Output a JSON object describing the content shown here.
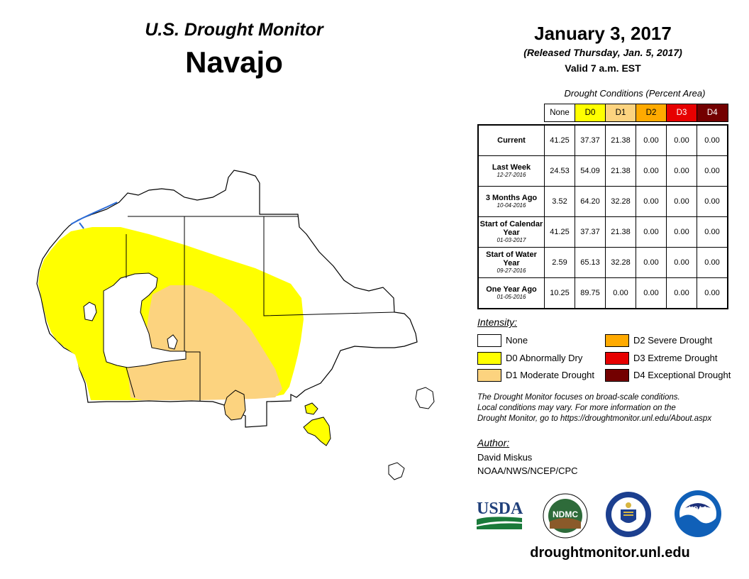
{
  "header": {
    "title": "U.S. Drought Monitor",
    "region": "Navajo"
  },
  "date_block": {
    "date": "January 3, 2017",
    "released": "(Released Thursday, Jan. 5, 2017)",
    "valid": "Valid 7 a.m. EST"
  },
  "table": {
    "caption": "Drought Conditions (Percent Area)",
    "columns": [
      {
        "label": "None",
        "color": "#ffffff",
        "text_color": "#000000"
      },
      {
        "label": "D0",
        "color": "#ffff00",
        "text_color": "#000000"
      },
      {
        "label": "D1",
        "color": "#fcd37f",
        "text_color": "#000000"
      },
      {
        "label": "D2",
        "color": "#ffaa00",
        "text_color": "#000000"
      },
      {
        "label": "D3",
        "color": "#e60000",
        "text_color": "#ffffff"
      },
      {
        "label": "D4",
        "color": "#730000",
        "text_color": "#ffffff"
      }
    ],
    "rows": [
      {
        "label": "Current",
        "date": "",
        "values": [
          "41.25",
          "37.37",
          "21.38",
          "0.00",
          "0.00",
          "0.00"
        ]
      },
      {
        "label": "Last Week",
        "date": "12-27-2016",
        "values": [
          "24.53",
          "54.09",
          "21.38",
          "0.00",
          "0.00",
          "0.00"
        ]
      },
      {
        "label": "3 Months Ago",
        "date": "10-04-2016",
        "values": [
          "3.52",
          "64.20",
          "32.28",
          "0.00",
          "0.00",
          "0.00"
        ]
      },
      {
        "label": "Start of Calendar Year",
        "date": "01-03-2017",
        "values": [
          "41.25",
          "37.37",
          "21.38",
          "0.00",
          "0.00",
          "0.00"
        ]
      },
      {
        "label": "Start of Water Year",
        "date": "09-27-2016",
        "values": [
          "2.59",
          "65.13",
          "32.28",
          "0.00",
          "0.00",
          "0.00"
        ]
      },
      {
        "label": "One Year Ago",
        "date": "01-05-2016",
        "values": [
          "10.25",
          "89.75",
          "0.00",
          "0.00",
          "0.00",
          "0.00"
        ]
      }
    ]
  },
  "legend": {
    "heading": "Intensity:",
    "items": [
      {
        "label": "None",
        "color": "#ffffff"
      },
      {
        "label": "D0 Abnormally Dry",
        "color": "#ffff00"
      },
      {
        "label": "D1 Moderate Drought",
        "color": "#fcd37f"
      },
      {
        "label": "D2 Severe Drought",
        "color": "#ffaa00"
      },
      {
        "label": "D3 Extreme Drought",
        "color": "#e60000"
      },
      {
        "label": "D4 Exceptional Drought",
        "color": "#730000"
      }
    ]
  },
  "footnote": {
    "line1": "The Drought Monitor focuses on broad-scale conditions.",
    "line2": "Local conditions may vary. For more information on the",
    "line3": "Drought Monitor, go to https://droughtmonitor.unl.edu/About.aspx"
  },
  "author": {
    "heading": "Author:",
    "name": "David Miskus",
    "org": "NOAA/NWS/NCEP/CPC"
  },
  "logos": {
    "usda": "USDA",
    "ndmc": "NDMC",
    "noaa": "NOAA"
  },
  "website": "droughtmonitor.unl.edu",
  "map_colors": {
    "d0": "#ffff00",
    "d1": "#fcd37f",
    "water": "#2a6bd8"
  }
}
